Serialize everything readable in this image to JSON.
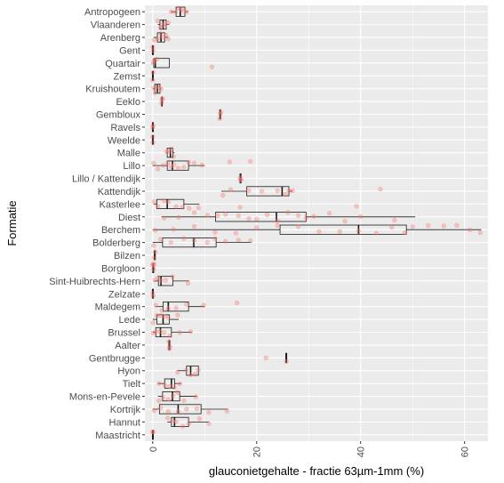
{
  "chart_data": {
    "type": "boxplot",
    "orientation": "horizontal",
    "xlabel": "glauconietgehalte - fractie 63µm-1mm (%)",
    "ylabel": "Formatie",
    "xlim": [
      -1.5,
      64.5
    ],
    "xticks": [
      0,
      20,
      40,
      60
    ],
    "categories_top_to_bottom": [
      "Antropogeen",
      "Vlaanderen",
      "Arenberg",
      "Gent",
      "Quartair",
      "Zemst",
      "Kruishoutem",
      "Eeklo",
      "Gembloux",
      "Ravels",
      "Weelde",
      "Malle",
      "Lillo",
      "Lillo / Kattendijk",
      "Kattendijk",
      "Kasterlee",
      "Diest",
      "Berchem",
      "Bolderberg",
      "Bilzen",
      "Borgloon",
      "Sint-Huibrechts-Hern",
      "Zelzate",
      "Maldegem",
      "Lede",
      "Brussel",
      "Aalter",
      "Gentbrugge",
      "Hyon",
      "Tielt",
      "Mons-en-Pevele",
      "Kortrijk",
      "Hannut",
      "Maastricht"
    ],
    "boxes": [
      {
        "category": "Antropogeen",
        "min": 3.5,
        "q1": 4.5,
        "median": 5.3,
        "q3": 6.2,
        "max": 6.8,
        "points": [
          3.6,
          4.4,
          5.0,
          5.5,
          6.0,
          6.5
        ]
      },
      {
        "category": "Vlaanderen",
        "min": 1.0,
        "q1": 1.4,
        "median": 2.0,
        "q3": 2.6,
        "max": 3.2,
        "points": [
          1.0,
          1.5,
          2.0,
          2.4,
          3.0
        ]
      },
      {
        "category": "Arenberg",
        "min": 0.2,
        "q1": 0.9,
        "median": 1.6,
        "q3": 2.3,
        "max": 3.0,
        "points": [
          0.3,
          1.0,
          1.5,
          2.0,
          2.6,
          3.0
        ]
      },
      {
        "category": "Gent",
        "min": 0.0,
        "q1": 0.0,
        "median": 0.0,
        "q3": 0.1,
        "max": 0.2,
        "points": [
          0.0,
          0.1
        ]
      },
      {
        "category": "Quartair",
        "min": 0.0,
        "q1": 0.2,
        "median": 0.5,
        "q3": 3.2,
        "max": 3.2,
        "points": [
          0.1,
          0.3,
          0.8,
          11.4
        ]
      },
      {
        "category": "Zemst",
        "min": 0.0,
        "q1": 0.0,
        "median": 0.0,
        "q3": 0.1,
        "max": 0.2,
        "points": [
          0.0,
          0.1
        ]
      },
      {
        "category": "Kruishoutem",
        "min": 0.1,
        "q1": 0.4,
        "median": 0.9,
        "q3": 1.4,
        "max": 1.6,
        "points": [
          0.2,
          0.5,
          0.9,
          1.3,
          1.6
        ]
      },
      {
        "category": "Eeklo",
        "min": 1.7,
        "q1": 1.7,
        "median": 1.8,
        "q3": 1.8,
        "max": 1.9,
        "points": [
          1.7,
          1.8,
          1.9
        ]
      },
      {
        "category": "Gembloux",
        "min": 12.9,
        "q1": 12.9,
        "median": 13.0,
        "q3": 13.0,
        "max": 13.1,
        "points": [
          12.9,
          13.0,
          13.1
        ]
      },
      {
        "category": "Ravels",
        "min": 0.0,
        "q1": 0.0,
        "median": 0.0,
        "q3": 0.1,
        "max": 0.2,
        "points": [
          0.0,
          0.1
        ]
      },
      {
        "category": "Weelde",
        "min": 0.0,
        "q1": 0.0,
        "median": 0.0,
        "q3": 0.1,
        "max": 0.2,
        "points": [
          0.0,
          0.1
        ]
      },
      {
        "category": "Malle",
        "min": 2.6,
        "q1": 2.8,
        "median": 3.4,
        "q3": 3.9,
        "max": 4.2,
        "points": [
          2.7,
          3.2,
          3.6,
          4.0
        ]
      },
      {
        "category": "Lillo",
        "min": 0.0,
        "q1": 2.8,
        "median": 3.8,
        "q3": 6.9,
        "max": 10.0,
        "points": [
          0.2,
          1.0,
          2.0,
          2.9,
          3.5,
          4.1,
          4.9,
          6.0,
          6.9,
          8.0,
          9.5,
          14.8,
          18.8
        ]
      },
      {
        "category": "Lillo / Kattendijk",
        "min": 16.8,
        "q1": 16.8,
        "median": 16.9,
        "q3": 17.0,
        "max": 17.0,
        "points": [
          16.8,
          16.9,
          17.0
        ]
      },
      {
        "category": "Kattendijk",
        "min": 13.2,
        "q1": 18.1,
        "median": 24.9,
        "q3": 26.2,
        "max": 26.9,
        "points": [
          13.5,
          15.0,
          18.5,
          21.0,
          24.0,
          25.5,
          26.2,
          26.9,
          43.8
        ]
      },
      {
        "category": "Kasterlee",
        "min": 0.2,
        "q1": 0.8,
        "median": 2.8,
        "q3": 6.0,
        "max": 9.0,
        "points": [
          0.3,
          1.0,
          2.2,
          3.0,
          4.5,
          5.7,
          7.0,
          8.8,
          16.8,
          39.2
        ]
      },
      {
        "category": "Diest",
        "min": 1.7,
        "q1": 12.1,
        "median": 23.8,
        "q3": 29.5,
        "max": 50.5,
        "points": [
          2.2,
          5.0,
          8.0,
          10.5,
          12.5,
          14.0,
          16.5,
          18.5,
          20.0,
          22.0,
          24.0,
          26.0,
          28.0,
          29.5,
          31.0,
          34.0,
          37.0,
          40.0,
          46.5
        ]
      },
      {
        "category": "Berchem",
        "min": 0.0,
        "q1": 24.5,
        "median": 39.6,
        "q3": 48.8,
        "max": 63.2,
        "points": [
          0.5,
          4.0,
          8.0,
          12.0,
          16.0,
          20.0,
          24.0,
          28.0,
          32.0,
          36.0,
          39.6,
          43.0,
          46.0,
          48.5,
          50.0,
          53.0,
          56.0,
          58.5,
          61.0,
          63.0
        ]
      },
      {
        "category": "Bolderberg",
        "min": 0.0,
        "q1": 1.9,
        "median": 7.9,
        "q3": 12.2,
        "max": 19.0,
        "points": [
          0.2,
          1.5,
          3.5,
          6.0,
          8.0,
          10.5,
          12.0,
          14.0,
          16.5,
          18.8
        ]
      },
      {
        "category": "Bilzen",
        "min": 0.2,
        "q1": 0.3,
        "median": 0.4,
        "q3": 0.5,
        "max": 0.6,
        "points": [
          0.3,
          0.5
        ]
      },
      {
        "category": "Borgloon",
        "min": 0.0,
        "q1": 0.0,
        "median": 0.1,
        "q3": 0.2,
        "max": 0.4,
        "points": [
          0.0,
          0.1,
          0.2,
          0.3
        ]
      },
      {
        "category": "Sint-Huibrechts-Hern",
        "min": 0.3,
        "q1": 1.1,
        "median": 1.6,
        "q3": 3.9,
        "max": 7.0,
        "points": [
          0.4,
          1.0,
          1.6,
          2.5,
          3.8,
          6.8
        ]
      },
      {
        "category": "Zelzate",
        "min": 0.0,
        "q1": 0.0,
        "median": 0.0,
        "q3": 0.1,
        "max": 0.2,
        "points": [
          0.0,
          0.1
        ]
      },
      {
        "category": "Maldegem",
        "min": 0.5,
        "q1": 2.0,
        "median": 3.0,
        "q3": 6.9,
        "max": 10.0,
        "points": [
          0.6,
          1.8,
          3.0,
          4.5,
          6.5,
          9.8,
          16.2
        ]
      },
      {
        "category": "Lede",
        "min": 0.0,
        "q1": 0.8,
        "median": 2.0,
        "q3": 3.2,
        "max": 5.0,
        "points": [
          0.1,
          0.8,
          1.5,
          2.3,
          3.0,
          4.8
        ]
      },
      {
        "category": "Brussel",
        "min": 0.0,
        "q1": 0.6,
        "median": 1.5,
        "q3": 3.6,
        "max": 7.5,
        "points": [
          0.1,
          0.6,
          1.4,
          2.2,
          3.3,
          5.2,
          7.3
        ]
      },
      {
        "category": "Aalter",
        "min": 3.0,
        "q1": 3.1,
        "median": 3.2,
        "q3": 3.3,
        "max": 3.4,
        "points": [
          3.1,
          3.2,
          3.3
        ]
      },
      {
        "category": "Gentbrugge",
        "min": 25.6,
        "q1": 25.6,
        "median": 25.7,
        "q3": 25.8,
        "max": 25.8,
        "points": [
          21.8,
          25.7
        ]
      },
      {
        "category": "Hyon",
        "min": 4.7,
        "q1": 6.5,
        "median": 7.3,
        "q3": 8.8,
        "max": 8.8,
        "points": [
          4.8,
          6.5,
          7.3,
          8.2,
          8.8
        ]
      },
      {
        "category": "Tielt",
        "min": 1.0,
        "q1": 2.3,
        "median": 3.6,
        "q3": 4.2,
        "max": 5.5,
        "points": [
          1.2,
          2.4,
          3.3,
          4.2,
          5.2
        ]
      },
      {
        "category": "Mons-en-Pevele",
        "min": 1.0,
        "q1": 1.9,
        "median": 3.8,
        "q3": 5.2,
        "max": 8.5,
        "points": [
          1.2,
          2.0,
          3.0,
          3.9,
          4.8,
          6.0,
          8.3
        ]
      },
      {
        "category": "Kortrijk",
        "min": 0.0,
        "q1": 1.3,
        "median": 4.9,
        "q3": 9.3,
        "max": 14.5,
        "points": [
          0.3,
          1.5,
          3.0,
          4.9,
          6.5,
          8.5,
          10.8,
          14.3
        ]
      },
      {
        "category": "Hannut",
        "min": 2.8,
        "q1": 3.6,
        "median": 4.2,
        "q3": 6.9,
        "max": 10.8,
        "points": [
          2.9,
          3.8,
          4.5,
          5.8,
          7.0,
          9.0,
          10.8
        ]
      },
      {
        "category": "Maastricht",
        "min": 0.0,
        "q1": 0.0,
        "median": 0.0,
        "q3": 0.1,
        "max": 0.2,
        "points": [
          0.0,
          0.1
        ]
      }
    ],
    "colors": {
      "panel_background": "#ebebeb",
      "gridline": "#ffffff",
      "box_outline": "#1a1a1a",
      "points": "#f8766d"
    },
    "grid": true,
    "legend": "none"
  }
}
